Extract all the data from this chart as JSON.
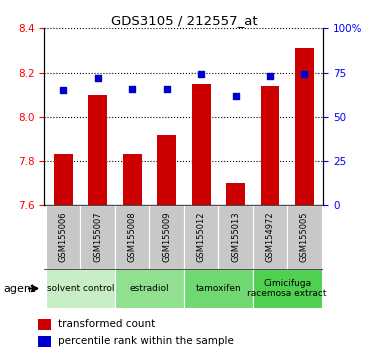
{
  "title": "GDS3105 / 212557_at",
  "samples": [
    "GSM155006",
    "GSM155007",
    "GSM155008",
    "GSM155009",
    "GSM155012",
    "GSM155013",
    "GSM154972",
    "GSM155005"
  ],
  "bar_values": [
    7.83,
    8.1,
    7.83,
    7.92,
    8.15,
    7.7,
    8.14,
    8.31
  ],
  "bar_base": 7.6,
  "percentile_values": [
    65,
    72,
    66,
    66,
    74,
    62,
    73,
    74
  ],
  "bar_color": "#cc0000",
  "dot_color": "#0000cc",
  "ylim_left": [
    7.6,
    8.4
  ],
  "ylim_right": [
    0,
    100
  ],
  "yticks_left": [
    7.6,
    7.8,
    8.0,
    8.2,
    8.4
  ],
  "yticks_right": [
    0,
    25,
    50,
    75,
    100
  ],
  "ytick_labels_right": [
    "0",
    "25",
    "50",
    "75",
    "100%"
  ],
  "groups": [
    {
      "label": "solvent control",
      "indices": [
        0,
        1
      ],
      "color": "#c8eec8"
    },
    {
      "label": "estradiol",
      "indices": [
        2,
        3
      ],
      "color": "#90e090"
    },
    {
      "label": "tamoxifen",
      "indices": [
        4,
        5
      ],
      "color": "#70d870"
    },
    {
      "label": "Cimicifuga\nracemosa extract",
      "indices": [
        6,
        7
      ],
      "color": "#50d050"
    }
  ],
  "agent_label": "agent",
  "legend_bar_label": "transformed count",
  "legend_dot_label": "percentile rank within the sample",
  "sample_box_color": "#c8c8c8",
  "bar_width": 0.55
}
